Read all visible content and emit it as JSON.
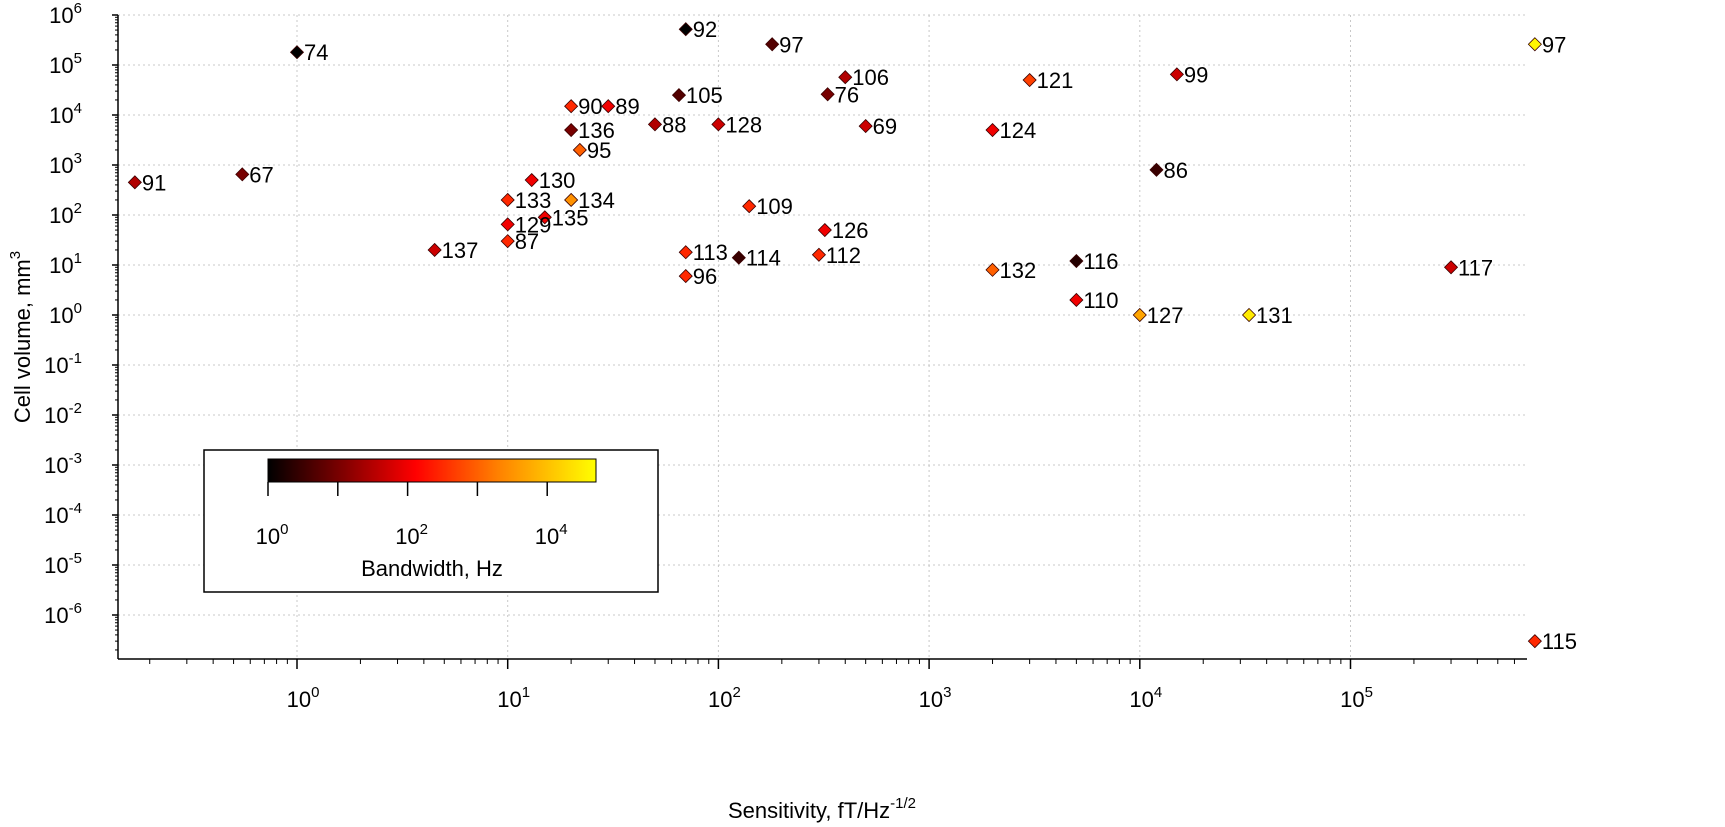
{
  "chart_data": {
    "type": "scatter",
    "xscale": "log",
    "yscale": "log",
    "xlabel": "Sensitivity, fT/Hz",
    "xlabel_exp": "-1/2",
    "ylabel": "Cell volume, mm",
    "ylabel_exp": "3",
    "xlim": [
      0.15,
      800000
    ],
    "ylim": [
      1e-07,
      1000000.0
    ],
    "x_ticks": [
      {
        "value": 1,
        "base": "10",
        "exp": "0"
      },
      {
        "value": 10,
        "base": "10",
        "exp": "1"
      },
      {
        "value": 100,
        "base": "10",
        "exp": "2"
      },
      {
        "value": 1000,
        "base": "10",
        "exp": "3"
      },
      {
        "value": 10000,
        "base": "10",
        "exp": "4"
      },
      {
        "value": 100000,
        "base": "10",
        "exp": "5"
      }
    ],
    "y_ticks": [
      {
        "value": 1000000.0,
        "base": "10",
        "exp": "6"
      },
      {
        "value": 100000.0,
        "base": "10",
        "exp": "5"
      },
      {
        "value": 10000.0,
        "base": "10",
        "exp": "4"
      },
      {
        "value": 1000.0,
        "base": "10",
        "exp": "3"
      },
      {
        "value": 100.0,
        "base": "10",
        "exp": "2"
      },
      {
        "value": 10.0,
        "base": "10",
        "exp": "1"
      },
      {
        "value": 1.0,
        "base": "10",
        "exp": "0"
      },
      {
        "value": 0.1,
        "base": "10",
        "exp": "-1"
      },
      {
        "value": 0.01,
        "base": "10",
        "exp": "-2"
      },
      {
        "value": 0.001,
        "base": "10",
        "exp": "-3"
      },
      {
        "value": 0.0001,
        "base": "10",
        "exp": "-4"
      },
      {
        "value": 1e-05,
        "base": "10",
        "exp": "-5"
      },
      {
        "value": 1e-06,
        "base": "10",
        "exp": "-6"
      }
    ],
    "grid": true,
    "colorbar": {
      "title": "Bandwidth, Hz",
      "scale": "log",
      "range": [
        1,
        50000
      ],
      "ticks": [
        {
          "value": 1,
          "base": "10",
          "exp": "0"
        },
        {
          "value": 100,
          "base": "10",
          "exp": "2"
        },
        {
          "value": 10000,
          "base": "10",
          "exp": "4"
        }
      ],
      "minor_ticks": [
        10,
        1000
      ],
      "colormap": "hot",
      "colors": [
        "#000000",
        "#8c0000",
        "#ff0000",
        "#ff8000",
        "#ffff00"
      ],
      "placement": "lower-left"
    },
    "points": [
      {
        "label": "74",
        "x": 1,
        "y": 180000,
        "bw": 1
      },
      {
        "label": "92",
        "x": 70,
        "y": 520000,
        "bw": 1
      },
      {
        "label": "97",
        "x": 180,
        "y": 260000,
        "bw": 5
      },
      {
        "label": "97",
        "x": 750000,
        "y": 260000,
        "bw": 40000
      },
      {
        "label": "106",
        "x": 400,
        "y": 57000,
        "bw": 30
      },
      {
        "label": "121",
        "x": 3000,
        "y": 50000,
        "bw": 500
      },
      {
        "label": "99",
        "x": 15000,
        "y": 65000,
        "bw": 50
      },
      {
        "label": "105",
        "x": 65,
        "y": 25000,
        "bw": 5
      },
      {
        "label": "76",
        "x": 330,
        "y": 26000,
        "bw": 10
      },
      {
        "label": "90",
        "x": 20,
        "y": 15000,
        "bw": 300
      },
      {
        "label": "89",
        "x": 30,
        "y": 15000,
        "bw": 100
      },
      {
        "label": "88",
        "x": 50,
        "y": 6500,
        "bw": 30
      },
      {
        "label": "128",
        "x": 100,
        "y": 6500,
        "bw": 50
      },
      {
        "label": "69",
        "x": 500,
        "y": 6000,
        "bw": 50
      },
      {
        "label": "124",
        "x": 2000,
        "y": 5000,
        "bw": 100
      },
      {
        "label": "136",
        "x": 20,
        "y": 5000,
        "bw": 10
      },
      {
        "label": "95",
        "x": 22,
        "y": 2000,
        "bw": 1000
      },
      {
        "label": "91",
        "x": 0.17,
        "y": 450,
        "bw": 30
      },
      {
        "label": "67",
        "x": 0.55,
        "y": 650,
        "bw": 10
      },
      {
        "label": "86",
        "x": 12000,
        "y": 800,
        "bw": 3
      },
      {
        "label": "130",
        "x": 13,
        "y": 500,
        "bw": 100
      },
      {
        "label": "133",
        "x": 10,
        "y": 200,
        "bw": 300
      },
      {
        "label": "134",
        "x": 20,
        "y": 200,
        "bw": 3000
      },
      {
        "label": "109",
        "x": 140,
        "y": 150,
        "bw": 300
      },
      {
        "label": "135",
        "x": 15,
        "y": 90,
        "bw": 100
      },
      {
        "label": "129",
        "x": 10,
        "y": 65,
        "bw": 100
      },
      {
        "label": "126",
        "x": 320,
        "y": 50,
        "bw": 100
      },
      {
        "label": "87",
        "x": 10,
        "y": 30,
        "bw": 300
      },
      {
        "label": "137",
        "x": 4.5,
        "y": 20,
        "bw": 50
      },
      {
        "label": "113",
        "x": 70,
        "y": 18,
        "bw": 300
      },
      {
        "label": "114",
        "x": 125,
        "y": 14,
        "bw": 3
      },
      {
        "label": "112",
        "x": 300,
        "y": 16,
        "bw": 300
      },
      {
        "label": "96",
        "x": 70,
        "y": 6,
        "bw": 300
      },
      {
        "label": "132",
        "x": 2000,
        "y": 8,
        "bw": 1000
      },
      {
        "label": "116",
        "x": 5000,
        "y": 12,
        "bw": 2
      },
      {
        "label": "117",
        "x": 300000,
        "y": 9,
        "bw": 50
      },
      {
        "label": "110",
        "x": 5000,
        "y": 2,
        "bw": 100
      },
      {
        "label": "127",
        "x": 10000,
        "y": 1,
        "bw": 5000
      },
      {
        "label": "131",
        "x": 33000,
        "y": 1,
        "bw": 30000
      },
      {
        "label": "115",
        "x": 750000,
        "y": 3e-07,
        "bw": 300
      }
    ]
  }
}
